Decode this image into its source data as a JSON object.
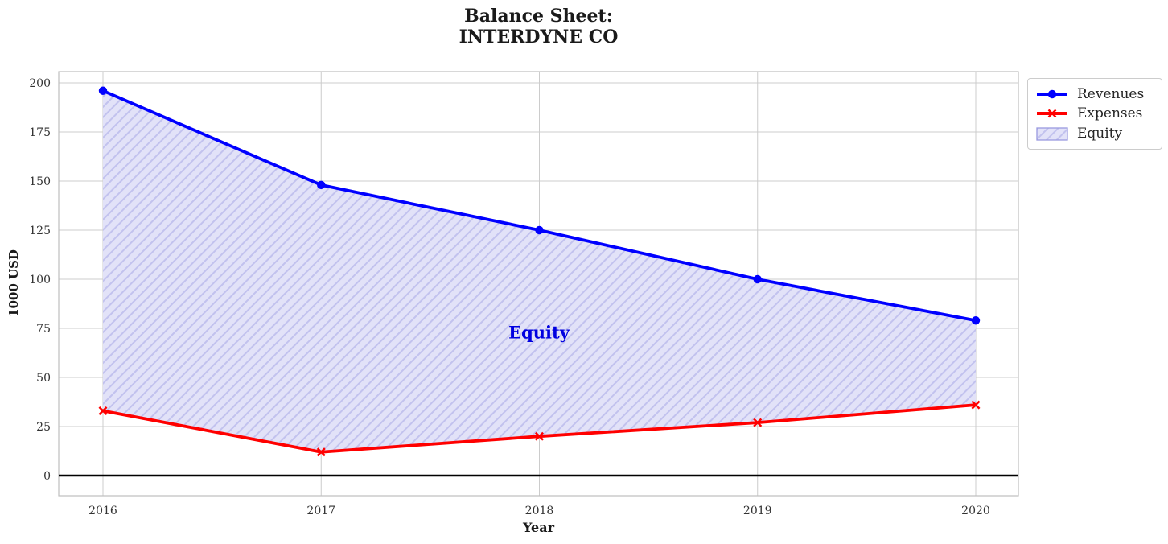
{
  "chart_data": {
    "type": "line",
    "title_lines": [
      "Balance Sheet:",
      "INTERDYNE CO"
    ],
    "title": "Balance Sheet:\nINTERDYNE CO",
    "xlabel": "Year",
    "ylabel": "1000 USD",
    "x": [
      2016,
      2017,
      2018,
      2019,
      2020
    ],
    "x_tick_labels": [
      "2016",
      "2017",
      "2018",
      "2019",
      "2020"
    ],
    "y_ticks": [
      0,
      25,
      50,
      75,
      100,
      125,
      150,
      175,
      200
    ],
    "ylim": [
      -10,
      206
    ],
    "grid": true,
    "zero_line": true,
    "series": [
      {
        "name": "Revenues",
        "color": "#0000ff",
        "marker": "circle",
        "values": [
          196,
          148,
          125,
          100,
          79
        ]
      },
      {
        "name": "Expenses",
        "color": "#ff0000",
        "marker": "x",
        "values": [
          33,
          12,
          20,
          27,
          36
        ]
      }
    ],
    "area": {
      "name": "Equity",
      "between": [
        "Revenues",
        "Expenses"
      ],
      "fill_color": "#e2e2f8",
      "hatch_color": "#c2c2ee",
      "hatch_style": "diagonal",
      "edge_color": "#9a9ae0"
    },
    "annotation": {
      "text": "Equity",
      "color": "#0000e0",
      "x": 2018,
      "y": 73
    },
    "legend": {
      "position": "outside upper right",
      "entries": [
        "Revenues",
        "Expenses",
        "Equity"
      ]
    },
    "colors": {
      "grid": "#cccccc",
      "frame": "#bfbfbf",
      "tick_text": "#333333",
      "zero_line": "#000000"
    }
  }
}
